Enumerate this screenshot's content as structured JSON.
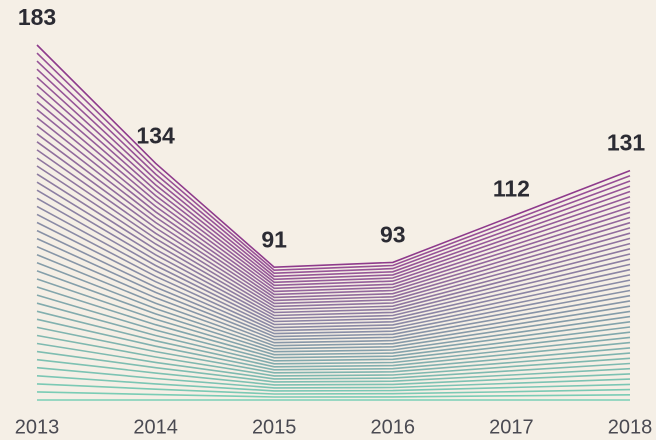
{
  "chart_data": {
    "type": "line",
    "categories": [
      "2013",
      "2014",
      "2015",
      "2016",
      "2017",
      "2018"
    ],
    "values": [
      183,
      134,
      91,
      93,
      112,
      131
    ],
    "color": "#8e3a8c",
    "fade_color": "#6ccbb0",
    "ylim": [
      0,
      183
    ],
    "data_labels": true
  }
}
